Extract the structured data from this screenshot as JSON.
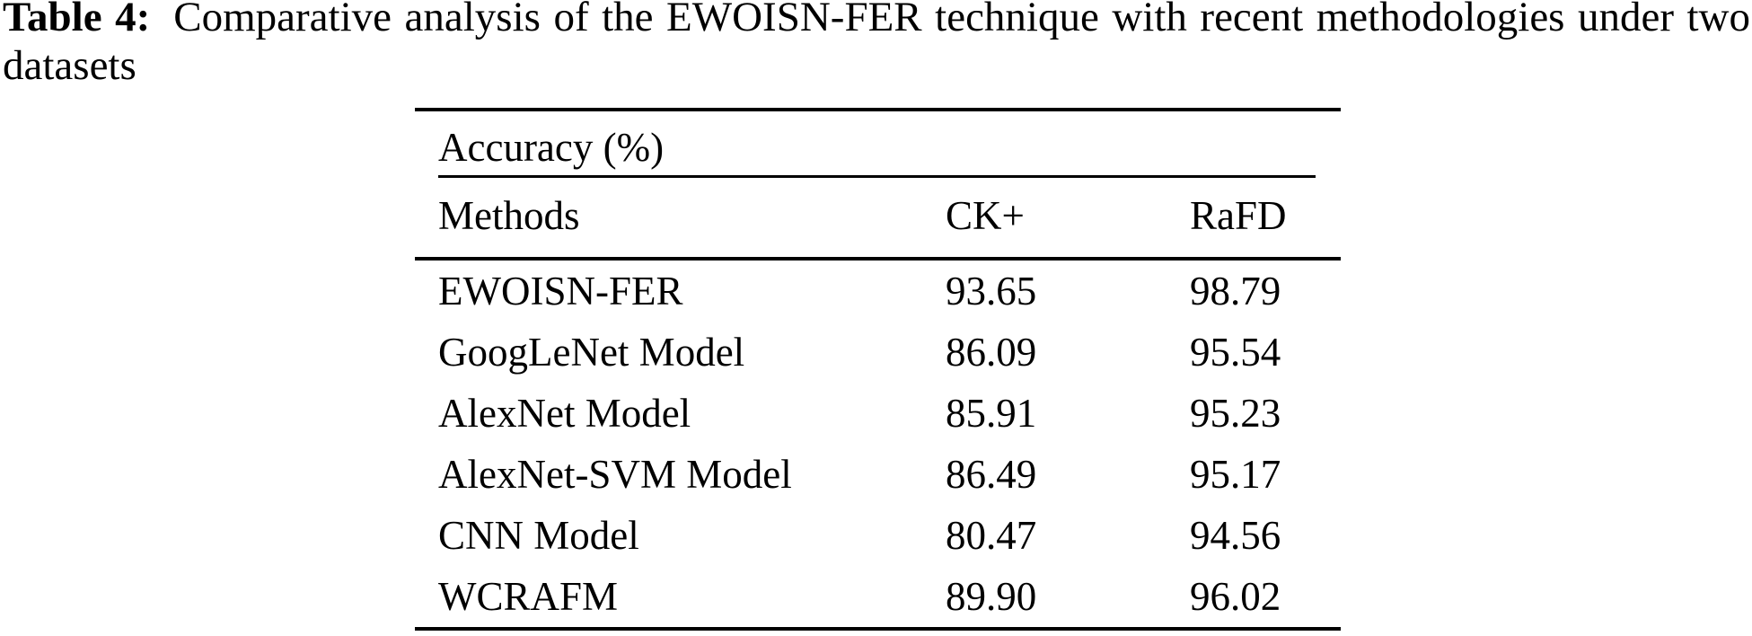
{
  "colors": {
    "background": "#ffffff",
    "text": "#000000",
    "rule": "#000000"
  },
  "caption": {
    "label": "Table 4:",
    "text": "Comparative analysis of the EWOISN-FER technique with recent methodologies under two datasets"
  },
  "table": {
    "group_header": "Accuracy (%)",
    "columns": [
      "Methods",
      "CK+",
      "RaFD"
    ],
    "rows": [
      {
        "method": "EWOISN-FER",
        "ck": "93.65",
        "rafd": "98.79"
      },
      {
        "method": "GoogLeNet Model",
        "ck": "86.09",
        "rafd": "95.54"
      },
      {
        "method": "AlexNet Model",
        "ck": "85.91",
        "rafd": "95.23"
      },
      {
        "method": "AlexNet-SVM Model",
        "ck": "86.49",
        "rafd": "95.17"
      },
      {
        "method": "CNN Model",
        "ck": "80.47",
        "rafd": "94.56"
      },
      {
        "method": "WCRAFM",
        "ck": "89.90",
        "rafd": "96.02"
      }
    ]
  }
}
